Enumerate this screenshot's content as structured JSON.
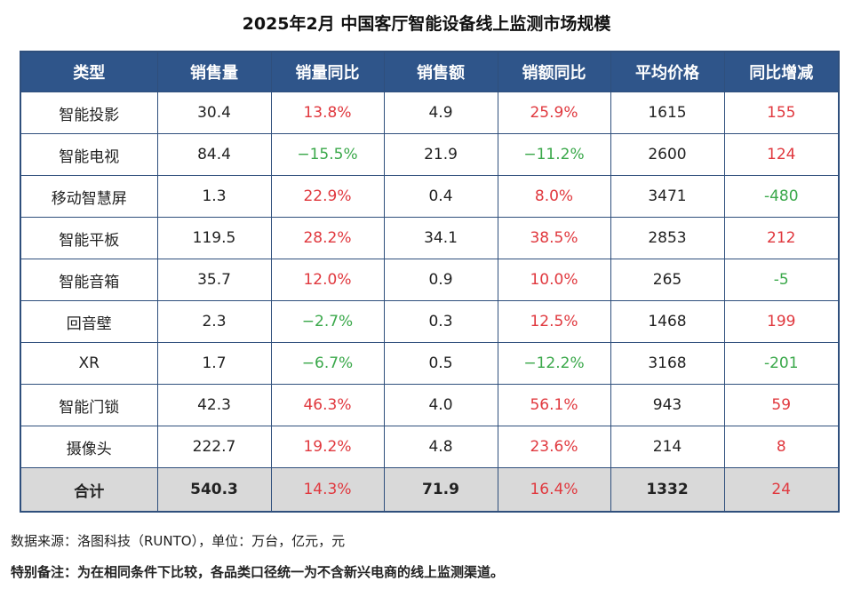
{
  "title": "2025年2月 中国客厅智能设备线上监测市场规模",
  "colors": {
    "header_bg": "#2f558a",
    "positive": "#e0383e",
    "negative": "#3aa84a",
    "total_bg": "#d9d9d9"
  },
  "chart_data": {
    "type": "table",
    "title": "2025年2月 中国客厅智能设备线上监测市场规模",
    "columns": [
      "类型",
      "销售量",
      "销量同比",
      "销售额",
      "销额同比",
      "平均价格",
      "同比增减"
    ],
    "rows": [
      [
        "智能投影",
        "30.4",
        "13.8%",
        "4.9",
        "25.9%",
        "1615",
        "155"
      ],
      [
        "智能电视",
        "84.4",
        "-15.5%",
        "21.9",
        "-11.2%",
        "2600",
        "124"
      ],
      [
        "移动智慧屏",
        "1.3",
        "22.9%",
        "0.4",
        "8.0%",
        "3471",
        "-480"
      ],
      [
        "智能平板",
        "119.5",
        "28.2%",
        "34.1",
        "38.5%",
        "2853",
        "212"
      ],
      [
        "智能音箱",
        "35.7",
        "12.0%",
        "0.9",
        "10.0%",
        "265",
        "-5"
      ],
      [
        "回音壁",
        "2.3",
        "-2.7%",
        "0.3",
        "12.5%",
        "1468",
        "199"
      ],
      [
        "XR",
        "1.7",
        "-6.7%",
        "0.5",
        "-12.2%",
        "3168",
        "-201"
      ],
      [
        "智能门锁",
        "42.3",
        "46.3%",
        "4.0",
        "56.1%",
        "943",
        "59"
      ],
      [
        "摄像头",
        "222.7",
        "19.2%",
        "4.8",
        "23.6%",
        "214",
        "8"
      ]
    ],
    "total": [
      "合计",
      "540.3",
      "14.3%",
      "71.9",
      "16.4%",
      "1332",
      "24"
    ]
  },
  "notes": {
    "source": "数据来源：洛图科技（RUNTO），单位：万台，亿元，元",
    "remark": "特别备注：为在相同条件下比较，各品类口径统一为不含新兴电商的线上监测渠道。"
  }
}
